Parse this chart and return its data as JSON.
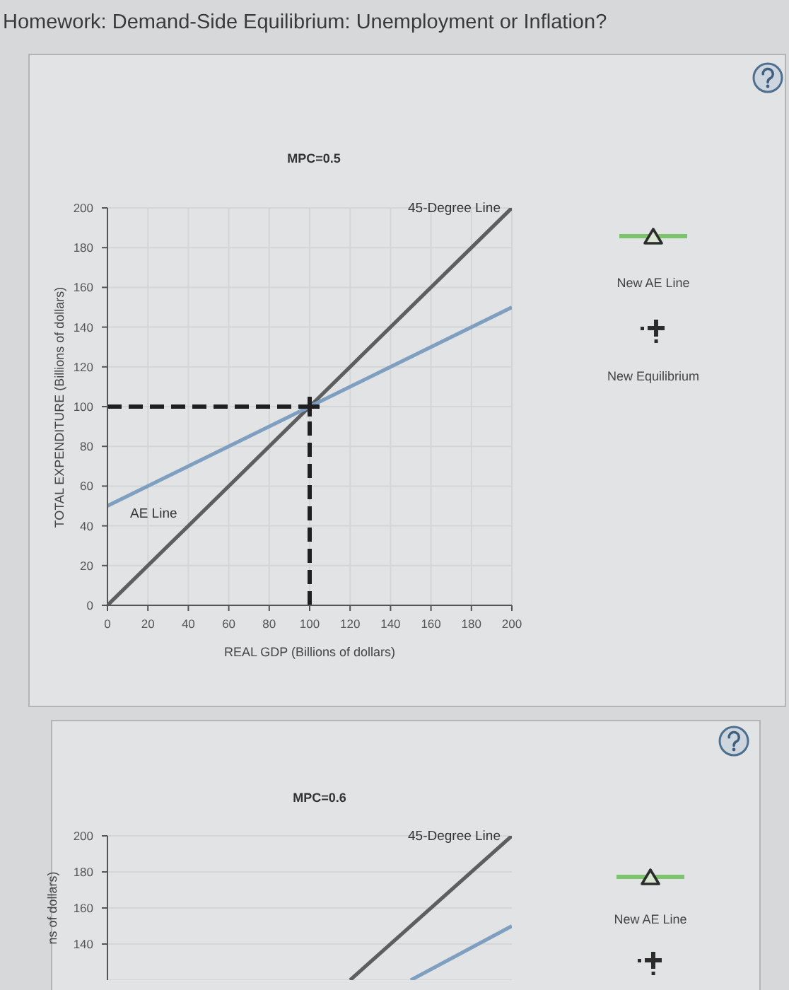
{
  "chart_data": [
    {
      "type": "line",
      "title": "Homework: Demand-Side Equilibrium: Unemployment or Inflation?",
      "subtitle": "MPC=0.5",
      "xlabel": "REAL GDP (Billions of dollars)",
      "ylabel": "TOTAL EXPENDITURE (Billions of dollars)",
      "annotations": [
        "New AE Line",
        "New Equilibrium"
      ],
      "xlim": [
        0,
        200
      ],
      "ylim": [
        0,
        200
      ],
      "xticks": [
        0,
        20,
        40,
        60,
        80,
        100,
        120,
        140,
        160,
        180,
        200
      ],
      "yticks": [
        0,
        20,
        40,
        60,
        80,
        100,
        120,
        140,
        160,
        180,
        200
      ],
      "grid": true,
      "marker": "none",
      "series": [
        {
          "name": "45-Degree Line",
          "color": "#5e5e5e",
          "x": [
            0,
            200
          ],
          "values": [
            0,
            200
          ]
        },
        {
          "name": "AE Line",
          "color": "#7f9fc1",
          "x": [
            0,
            200
          ],
          "values": [
            50,
            150
          ]
        },
        {
          "color": "#1f1f1f",
          "x": [
            0,
            100
          ],
          "values": [
            100,
            100
          ],
          "line_style": "dashed"
        },
        {
          "color": "#1f1f1f",
          "x": [
            100,
            100
          ],
          "values": [
            0,
            100
          ],
          "line_style": "dashed"
        },
        {
          "type": "scatter",
          "color": "#1f1f1f",
          "x": [
            100
          ],
          "values": [
            100
          ],
          "marker": "cross"
        }
      ]
    },
    {
      "type": "line",
      "title": "MPC=0.6",
      "ylabel": "ns of dollars)",
      "annotations": [
        "New AE Line"
      ],
      "xlim": [
        0,
        200
      ],
      "ylim": [
        120,
        200
      ],
      "yticks": [
        140,
        160,
        180,
        200
      ],
      "tick_labels": "y",
      "grid": "y",
      "marker": "none",
      "series": [
        {
          "name": "45-Degree Line",
          "color": "#5e5e5e",
          "x": [
            120,
            200
          ],
          "values": [
            120,
            200
          ]
        },
        {
          "color": "#7f9fc1",
          "x": [
            150,
            200
          ],
          "values": [
            120,
            150
          ]
        }
      ]
    }
  ]
}
